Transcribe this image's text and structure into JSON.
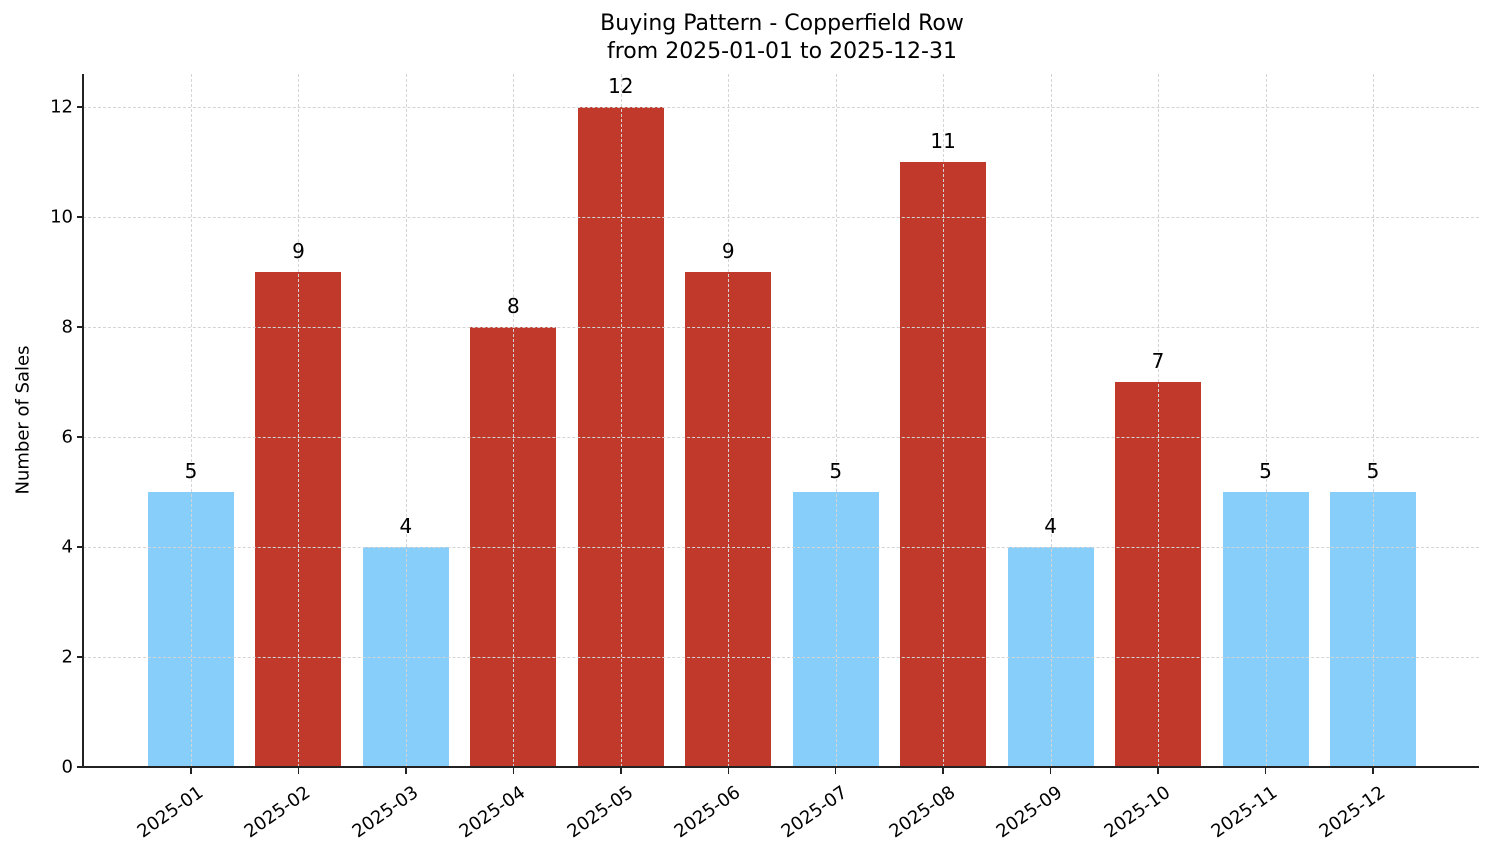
{
  "chart_data": {
    "type": "bar",
    "title": "Buying Pattern - Copperfield Row",
    "subtitle": "from 2025-01-01 to 2025-12-31",
    "xlabel": "",
    "ylabel": "Number of Sales",
    "categories": [
      "2025-01",
      "2025-02",
      "2025-03",
      "2025-04",
      "2025-05",
      "2025-06",
      "2025-07",
      "2025-08",
      "2025-09",
      "2025-10",
      "2025-11",
      "2025-12"
    ],
    "values": [
      5,
      9,
      4,
      8,
      12,
      9,
      5,
      11,
      4,
      7,
      5,
      5
    ],
    "bar_colors": [
      "#87CEFA",
      "#C0392B",
      "#87CEFA",
      "#C0392B",
      "#C0392B",
      "#C0392B",
      "#87CEFA",
      "#C0392B",
      "#87CEFA",
      "#C0392B",
      "#87CEFA",
      "#87CEFA"
    ],
    "ylim": [
      0,
      12.6
    ],
    "yticks": [
      0,
      2,
      4,
      6,
      8,
      10,
      12
    ],
    "grid": true,
    "legend": null,
    "data_labels": true
  },
  "colors": {
    "low": "#87CEFA",
    "high": "#C0392B",
    "grid": "#d4d4d4",
    "axis": "#222222"
  }
}
